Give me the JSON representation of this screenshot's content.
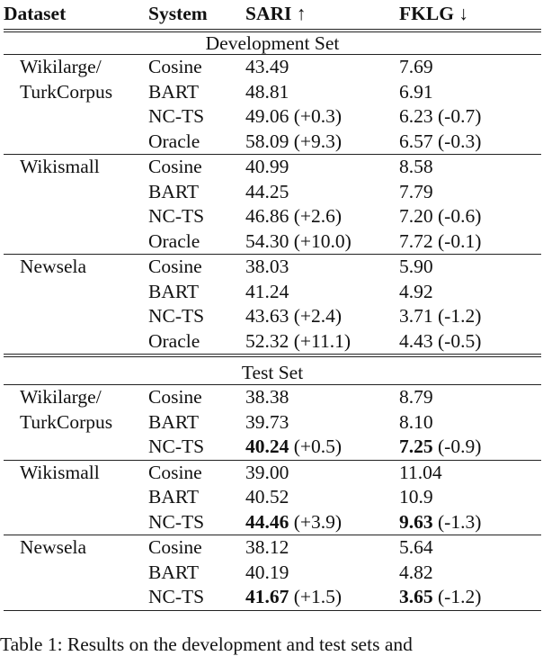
{
  "header": {
    "dataset": "Dataset",
    "system": "System",
    "sari": "SARI ↑",
    "fklg": "FKLG ↓"
  },
  "sections": [
    {
      "title": "Development Set",
      "groups": [
        {
          "dataset": [
            "Wikilarge/",
            "TurkCorpus"
          ],
          "rows": [
            {
              "system": "Cosine",
              "sari": "43.49",
              "sari_delta": "",
              "fklg": "7.69",
              "fklg_delta": "",
              "bold": false
            },
            {
              "system": "BART",
              "sari": "48.81",
              "sari_delta": "",
              "fklg": "6.91",
              "fklg_delta": "",
              "bold": false
            },
            {
              "system": "NC-TS",
              "sari": "49.06",
              "sari_delta": "(+0.3)",
              "fklg": "6.23",
              "fklg_delta": "(-0.7)",
              "bold": false
            },
            {
              "system": "Oracle",
              "sari": "58.09",
              "sari_delta": "(+9.3)",
              "fklg": "6.57",
              "fklg_delta": "(-0.3)",
              "bold": false
            }
          ]
        },
        {
          "dataset": [
            "Wikismall"
          ],
          "rows": [
            {
              "system": "Cosine",
              "sari": "40.99",
              "sari_delta": "",
              "fklg": "8.58",
              "fklg_delta": "",
              "bold": false
            },
            {
              "system": "BART",
              "sari": "44.25",
              "sari_delta": "",
              "fklg": "7.79",
              "fklg_delta": "",
              "bold": false
            },
            {
              "system": "NC-TS",
              "sari": "46.86",
              "sari_delta": "(+2.6)",
              "fklg": "7.20",
              "fklg_delta": "(-0.6)",
              "bold": false
            },
            {
              "system": "Oracle",
              "sari": "54.30",
              "sari_delta": "(+10.0)",
              "fklg": "7.72",
              "fklg_delta": "(-0.1)",
              "bold": false
            }
          ]
        },
        {
          "dataset": [
            "Newsela"
          ],
          "rows": [
            {
              "system": "Cosine",
              "sari": "38.03",
              "sari_delta": "",
              "fklg": "5.90",
              "fklg_delta": "",
              "bold": false
            },
            {
              "system": "BART",
              "sari": "41.24",
              "sari_delta": "",
              "fklg": "4.92",
              "fklg_delta": "",
              "bold": false
            },
            {
              "system": "NC-TS",
              "sari": "43.63",
              "sari_delta": "(+2.4)",
              "fklg": "3.71",
              "fklg_delta": "(-1.2)",
              "bold": false
            },
            {
              "system": "Oracle",
              "sari": "52.32",
              "sari_delta": "(+11.1)",
              "fklg": "4.43",
              "fklg_delta": "(-0.5)",
              "bold": false
            }
          ]
        }
      ]
    },
    {
      "title": "Test Set",
      "groups": [
        {
          "dataset": [
            "Wikilarge/",
            "TurkCorpus"
          ],
          "rows": [
            {
              "system": "Cosine",
              "sari": "38.38",
              "sari_delta": "",
              "fklg": "8.79",
              "fklg_delta": "",
              "bold": false
            },
            {
              "system": "BART",
              "sari": "39.73",
              "sari_delta": "",
              "fklg": "8.10",
              "fklg_delta": "",
              "bold": false
            },
            {
              "system": "NC-TS",
              "sari": "40.24",
              "sari_delta": "(+0.5)",
              "fklg": "7.25",
              "fklg_delta": "(-0.9)",
              "bold": true
            }
          ]
        },
        {
          "dataset": [
            "Wikismall"
          ],
          "rows": [
            {
              "system": "Cosine",
              "sari": "39.00",
              "sari_delta": "",
              "fklg": "11.04",
              "fklg_delta": "",
              "bold": false
            },
            {
              "system": "BART",
              "sari": "40.52",
              "sari_delta": "",
              "fklg": "10.9",
              "fklg_delta": "",
              "bold": false
            },
            {
              "system": "NC-TS",
              "sari": "44.46",
              "sari_delta": "(+3.9)",
              "fklg": "9.63",
              "fklg_delta": "(-1.3)",
              "bold": true
            }
          ]
        },
        {
          "dataset": [
            "Newsela"
          ],
          "rows": [
            {
              "system": "Cosine",
              "sari": "38.12",
              "sari_delta": "",
              "fklg": "5.64",
              "fklg_delta": "",
              "bold": false
            },
            {
              "system": "BART",
              "sari": "40.19",
              "sari_delta": "",
              "fklg": "4.82",
              "fklg_delta": "",
              "bold": false
            },
            {
              "system": "NC-TS",
              "sari": "41.67",
              "sari_delta": "(+1.5)",
              "fklg": "3.65",
              "fklg_delta": "(-1.2)",
              "bold": true
            }
          ]
        }
      ]
    }
  ],
  "caption": "Table 1: Results on the development and test sets and"
}
